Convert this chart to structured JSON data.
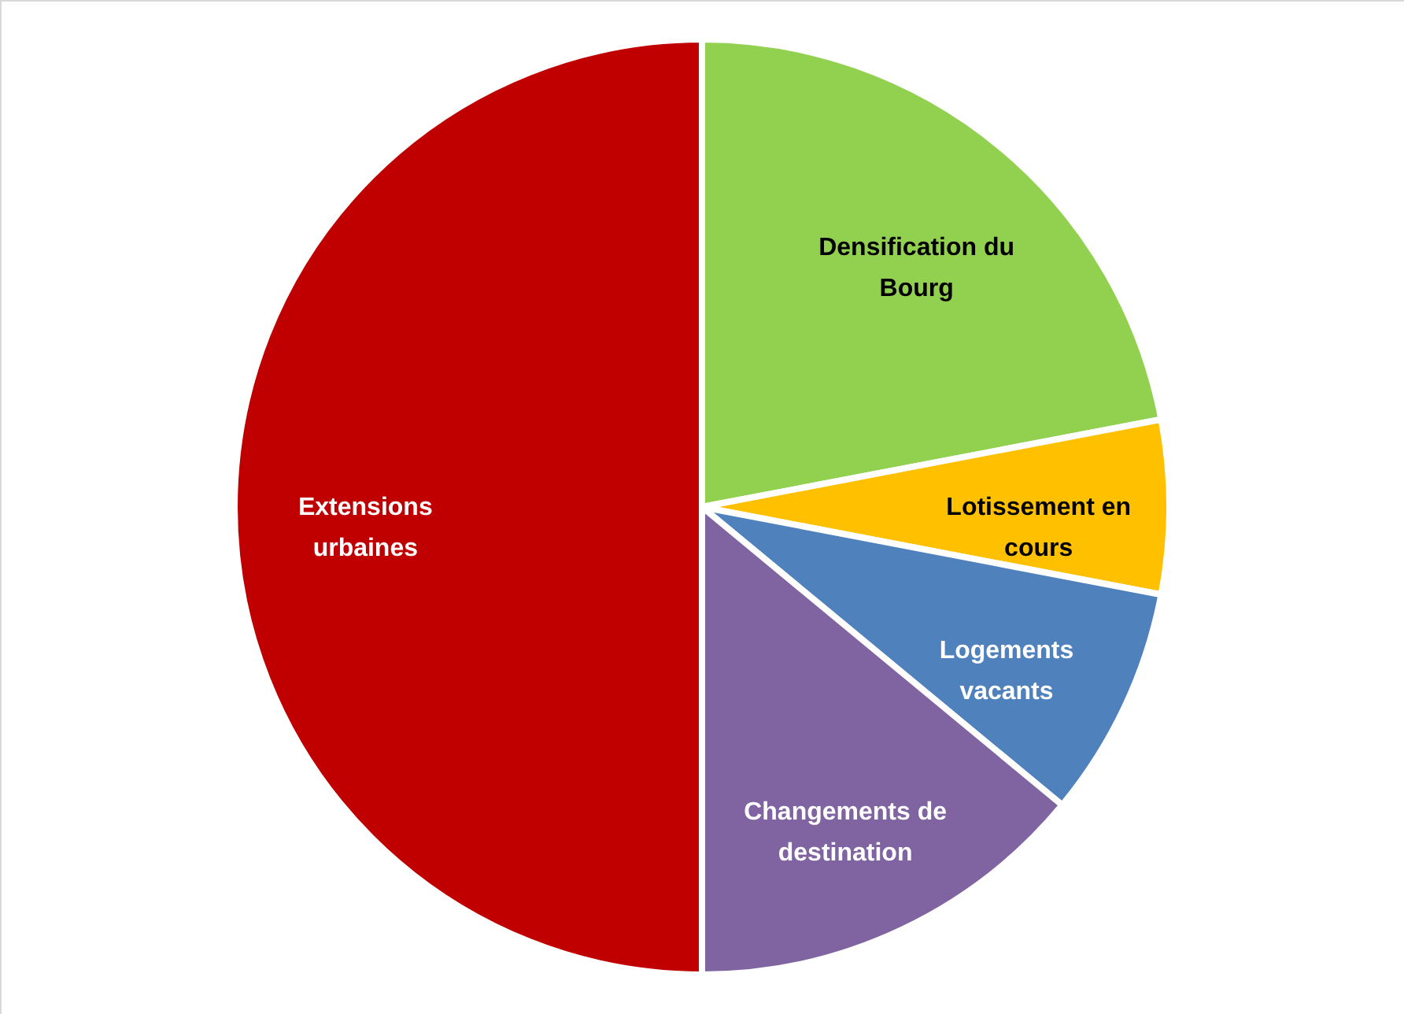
{
  "chart_data": {
    "type": "pie",
    "categories": [
      "Densification du Bourg",
      "Lotissement en cours",
      "Logements vacants",
      "Changements de destination",
      "Extensions urbaines"
    ],
    "values": [
      22,
      6,
      8,
      14,
      50
    ],
    "colors": [
      "#92d050",
      "#ffc000",
      "#4f81bd",
      "#8064a2",
      "#c00000"
    ]
  }
}
